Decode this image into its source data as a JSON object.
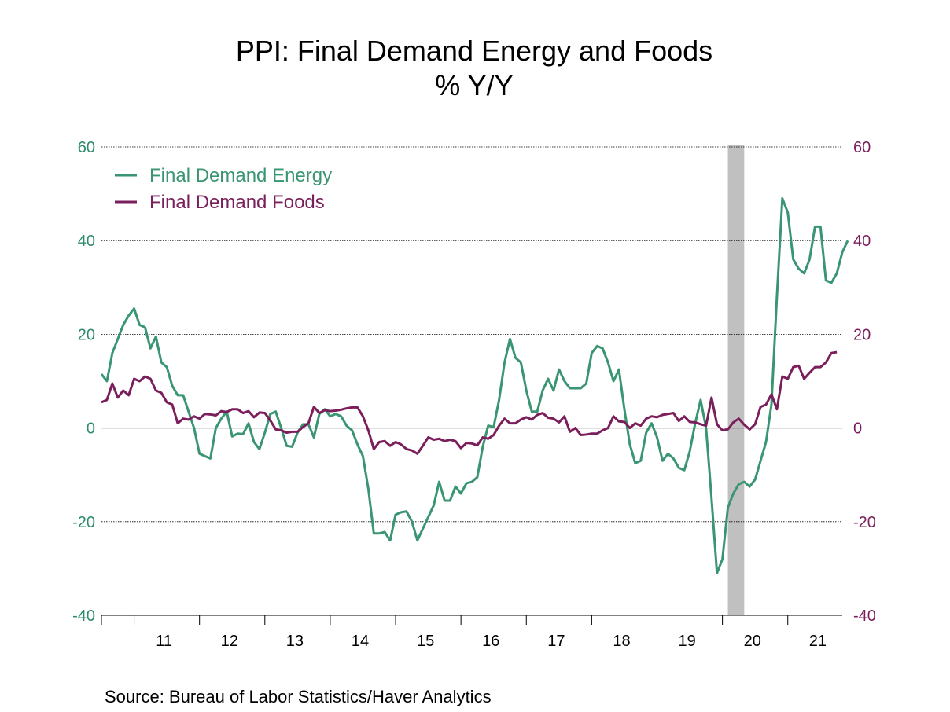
{
  "title": "PPI: Final Demand Energy and Foods",
  "subtitle": "% Y/Y",
  "source": "Source:  Bureau of Labor Statistics/Haver Analytics",
  "colors": {
    "energy": "#3a9572",
    "foods": "#7a1f5c",
    "recession": "#c0c0c0",
    "left_axis": "#2e8b6a",
    "right_axis": "#7a1f5c"
  },
  "chart_data": {
    "type": "line",
    "title": "PPI: Final Demand Energy and Foods",
    "subtitle": "% Y/Y",
    "x_start": "2010-07",
    "x_frequency": "monthly",
    "x_ticks": [
      "11",
      "12",
      "13",
      "14",
      "15",
      "16",
      "17",
      "18",
      "19",
      "20",
      "21"
    ],
    "ylim_left": [
      -40,
      60
    ],
    "ylim_right": [
      -40,
      60
    ],
    "yticks_left": [
      "60",
      "40",
      "20",
      "0",
      "-20",
      "-40"
    ],
    "yticks_right": [
      "60",
      "40",
      "20",
      "0",
      "-20",
      "-40"
    ],
    "grid": "horizontal dotted",
    "legend_position": "top-left",
    "recession_shading": {
      "start": "2020-02",
      "end": "2020-04"
    },
    "series": [
      {
        "name": "Final Demand Energy",
        "axis": "left",
        "values": [
          11.5,
          10,
          16,
          19,
          22,
          24,
          25.5,
          22,
          21.5,
          17,
          19.5,
          14,
          13,
          9,
          7,
          7,
          3.5,
          0,
          -5.5,
          -6,
          -6.5,
          0,
          2,
          3.5,
          -1.8,
          -1.2,
          -1.3,
          1,
          -3,
          -4.5,
          -1,
          3,
          3.5,
          0,
          -3.8,
          -4,
          -1,
          0.8,
          0.8,
          -2,
          3,
          4,
          2.5,
          3,
          2.5,
          0.5,
          -0.5,
          -3.5,
          -6,
          -13,
          -22.5,
          -22.5,
          -22.2,
          -24,
          -18.5,
          -18,
          -17.8,
          -20,
          -24,
          -21.5,
          -19,
          -16.5,
          -11.5,
          -15.5,
          -15.5,
          -12.5,
          -14,
          -11.8,
          -11.5,
          -10.5,
          -4,
          0.5,
          0.2,
          6,
          14,
          19,
          15,
          14,
          8,
          3.5,
          3.5,
          8,
          10.5,
          8,
          12.5,
          10,
          8.5,
          8.5,
          8.5,
          9.5,
          16,
          17.5,
          17,
          14,
          10,
          12.5,
          4,
          -3.5,
          -7.5,
          -7,
          -1,
          1,
          -2,
          -7,
          -5.5,
          -6.5,
          -8.5,
          -9,
          -5,
          1,
          6,
          0,
          -15,
          -31,
          -28,
          -17,
          -14,
          -12,
          -11.5,
          -12.5,
          -11,
          -7,
          -3,
          5,
          28,
          49,
          46,
          36,
          34,
          33,
          36,
          43,
          43,
          31.5,
          31,
          33,
          37.5,
          40
        ]
      },
      {
        "name": "Final Demand Foods",
        "axis": "right",
        "values": [
          5.5,
          6,
          9.5,
          6.5,
          8,
          7,
          10.5,
          10,
          11,
          10.5,
          8,
          7.5,
          5.5,
          5,
          1,
          2,
          1.8,
          2.5,
          2,
          3,
          2.9,
          2.7,
          3.6,
          3.4,
          4,
          4,
          3.2,
          3.6,
          2.3,
          3.3,
          3.2,
          1.6,
          -0.3,
          -0.5,
          -1,
          -0.8,
          -0.8,
          0.2,
          1,
          4.5,
          3.2,
          3.8,
          3.6,
          3.7,
          3.9,
          4.2,
          4.4,
          4.4,
          2.5,
          -0.5,
          -4.5,
          -3,
          -2.8,
          -3.8,
          -3,
          -3.5,
          -4.5,
          -4.8,
          -5.5,
          -3.8,
          -2,
          -2.5,
          -2.3,
          -2.8,
          -2.5,
          -2.8,
          -4.3,
          -3.2,
          -3.3,
          -3.7,
          -2,
          -2.3,
          -1.5,
          0.5,
          2,
          1,
          1,
          1.8,
          2.3,
          1.8,
          2.8,
          3.2,
          2.2,
          2,
          1.2,
          2.5,
          -0.8,
          0,
          -1.5,
          -1.4,
          -1.2,
          -1.2,
          -0.5,
          0,
          2.5,
          1.4,
          1.3,
          0,
          1,
          0.5,
          2,
          2.5,
          2.3,
          2.8,
          3,
          3.2,
          1.5,
          2.5,
          1.3,
          1.2,
          0.8,
          0.5,
          6.5,
          0.8,
          -0.5,
          -0.3,
          1.2,
          2,
          0.7,
          -0.3,
          0.8,
          4.5,
          5,
          7.2,
          4,
          11,
          10.5,
          13,
          13.3,
          10.5,
          11.8,
          13,
          13,
          14,
          16,
          16.2
        ]
      }
    ]
  }
}
